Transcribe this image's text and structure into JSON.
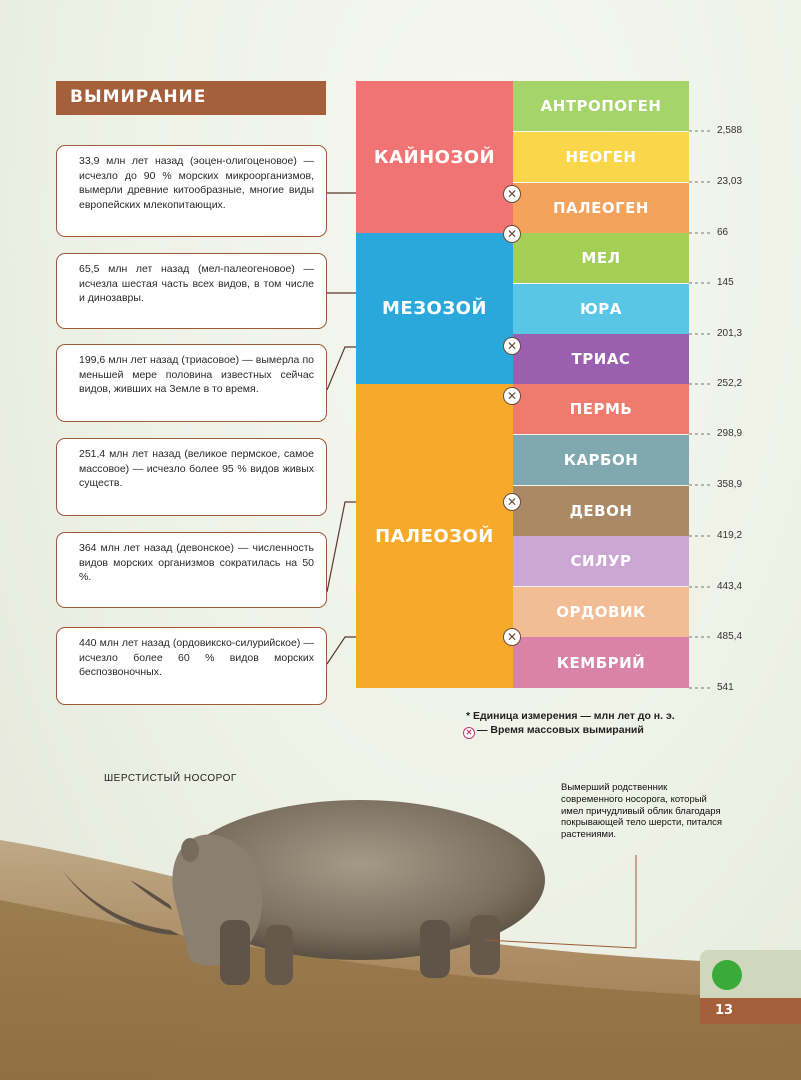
{
  "title": "ВЫМИРАНИЕ",
  "callouts": [
    "33,9 млн лет назад (эоцен-олигоценовое) — исчезло до 90 % морских микроорганизмов, вымерли древние китообразные, многие виды европейских млекопитающих.",
    "65,5 млн лет назад (мел-палеогеновое) — исчезла шестая часть всех видов, в том числе и динозавры.",
    "199,6 млн лет назад (триасовое) — вымерла по меньшей мере половина известных сейчас видов, живших на Земле в то время.",
    "251,4 млн лет назад (великое пермское, самое массовое) — исчезло более 95 % видов живых существ.",
    "364 млн лет назад (девонское) — численность видов морских организмов сократилась на 50 %.",
    "440 млн лет назад (ордовикско-силурийское) — исчезло более 60 % видов морских беспозвоночных."
  ],
  "eras": [
    {
      "name": "КАЙНОЗОЙ",
      "color": "#f07474"
    },
    {
      "name": "МЕЗОЗОЙ",
      "color": "#2aa8dc"
    },
    {
      "name": "ПАЛЕОЗОЙ",
      "color": "#f7a92c"
    }
  ],
  "periods": [
    {
      "name": "АНТРОПОГЕН",
      "color": "#a5d46a"
    },
    {
      "name": "НЕОГЕН",
      "color": "#fad74a"
    },
    {
      "name": "ПАЛЕОГЕН",
      "color": "#f4a35c"
    },
    {
      "name": "МЕЛ",
      "color": "#a3cf55"
    },
    {
      "name": "ЮРА",
      "color": "#59c6e6"
    },
    {
      "name": "ТРИАС",
      "color": "#9b5fb0"
    },
    {
      "name": "ПЕРМЬ",
      "color": "#ef7b6e"
    },
    {
      "name": "КАРБОН",
      "color": "#7fa9ae"
    },
    {
      "name": "ДЕВОН",
      "color": "#a98a64"
    },
    {
      "name": "СИЛУР",
      "color": "#cca6d4"
    },
    {
      "name": "ОРДОВИК",
      "color": "#f2bc95"
    },
    {
      "name": "КЕМБРИЙ",
      "color": "#d983a9"
    }
  ],
  "boundaries": [
    "2,588",
    "23,03",
    "66",
    "145",
    "201,3",
    "252,2",
    "298,9",
    "358,9",
    "419,2",
    "443,4",
    "485,4",
    "541"
  ],
  "legend": {
    "unit": "* Единица измерения — млн лет до н. э.",
    "marker": "— Время массовых вымираний"
  },
  "rhino": {
    "title": "ШЕРСТИСТЫЙ НОСОРОГ",
    "description": "Вымерший родственник современного носорога, который имел причудливый облик благодаря покрывающей тело шерсти, питался растениями."
  },
  "page_number": "13",
  "colors": {
    "accent": "#a5603b"
  }
}
